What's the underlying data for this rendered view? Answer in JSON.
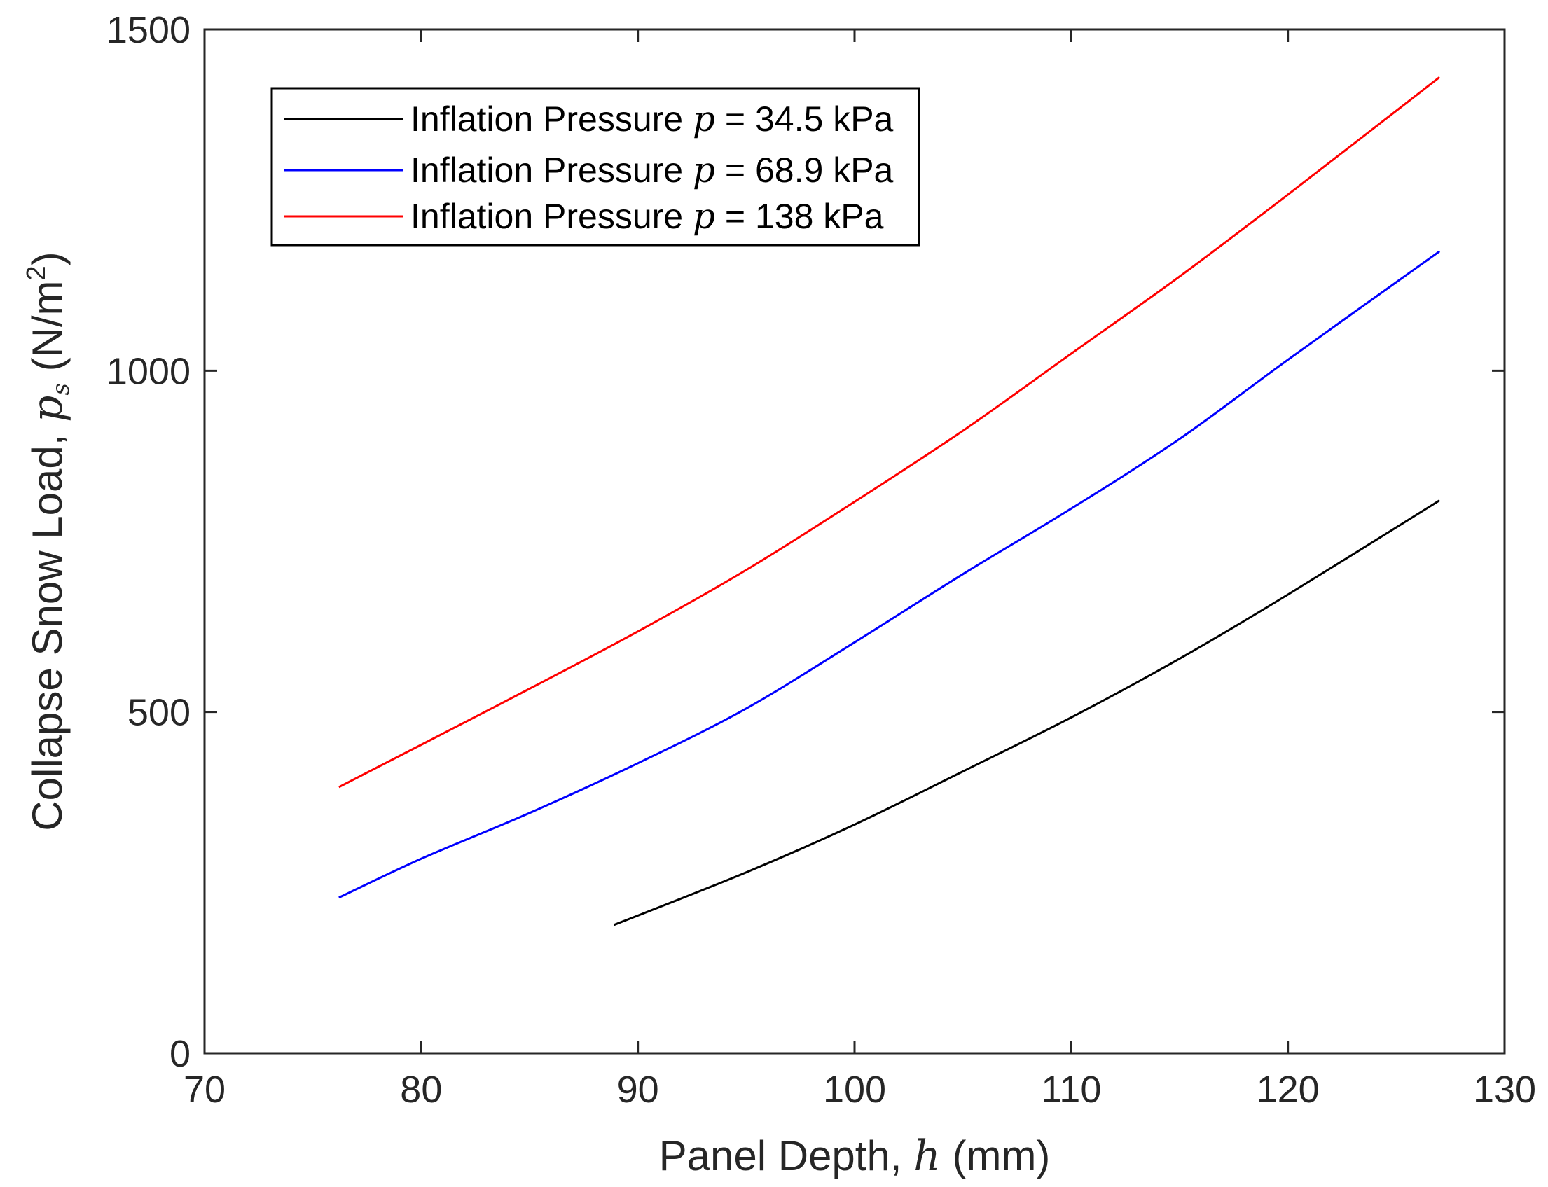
{
  "chart_data": {
    "type": "line",
    "title": "",
    "xlabel_prefix": "Panel Depth, ",
    "xlabel_var": "h",
    "xlabel_suffix": " (mm)",
    "ylabel_prefix": "Collapse Snow Load, ",
    "ylabel_var": "p",
    "ylabel_sub": "s",
    "ylabel_unit_open": " (N/m",
    "ylabel_unit_sup": "2",
    "ylabel_unit_close": ")",
    "xlim": [
      70,
      130
    ],
    "ylim": [
      0,
      1500
    ],
    "xticks": [
      70,
      80,
      90,
      100,
      110,
      120,
      130
    ],
    "xtick_labels": [
      "70",
      "80",
      "90",
      "100",
      "110",
      "120",
      "130"
    ],
    "yticks": [
      0,
      500,
      1000,
      1500
    ],
    "ytick_labels": [
      "0",
      "500",
      "1000",
      "1500"
    ],
    "grid": false,
    "legend_position": "top-left",
    "series": [
      {
        "name": "Inflation Pressure p = 34.5 kPa",
        "legend_prefix": "Inflation Pressure ",
        "legend_var": "p",
        "legend_suffix": " = 34.5 kPa",
        "color": "#000000",
        "x": [
          88.9,
          95,
          100,
          105,
          110,
          115,
          120,
          127
        ],
        "y": [
          188,
          265,
          335,
          413,
          492,
          578,
          672,
          810
        ]
      },
      {
        "name": "Inflation Pressure p = 68.9 kPa",
        "legend_prefix": "Inflation Pressure ",
        "legend_var": "p",
        "legend_suffix": " = 68.9 kPa",
        "color": "#0000ff",
        "x": [
          76.2,
          80,
          85,
          90,
          95,
          100,
          105,
          110,
          115,
          120,
          127
        ],
        "y": [
          228,
          285,
          352,
          425,
          505,
          602,
          702,
          798,
          900,
          1016,
          1175
        ]
      },
      {
        "name": "Inflation Pressure p = 138 kPa",
        "legend_prefix": "Inflation Pressure ",
        "legend_var": "p",
        "legend_suffix": " = 138 kPa",
        "color": "#ff0000",
        "x": [
          76.2,
          80,
          85,
          90,
          95,
          100,
          105,
          110,
          115,
          120,
          127
        ],
        "y": [
          390,
          452,
          534,
          618,
          708,
          808,
          912,
          1025,
          1138,
          1258,
          1430
        ]
      }
    ]
  }
}
